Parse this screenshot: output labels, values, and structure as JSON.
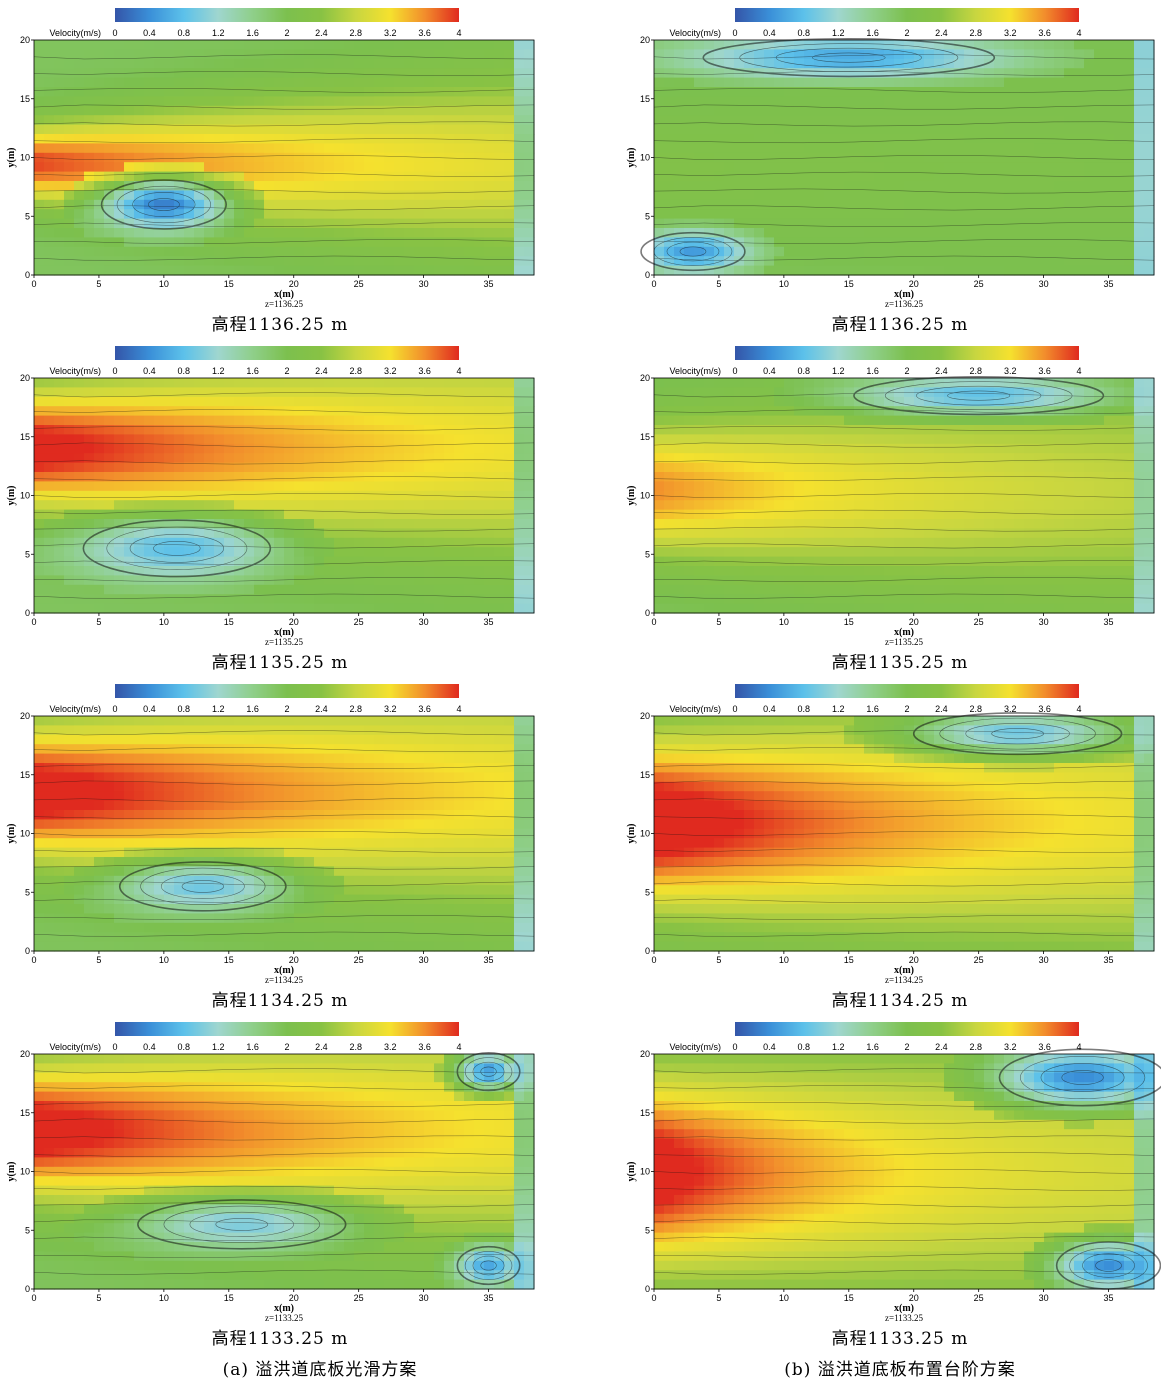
{
  "colorbar": {
    "label": "Velocity(m/s)",
    "ticks": [
      "0",
      "0.4",
      "0.8",
      "1.2",
      "1.6",
      "2",
      "2.4",
      "2.8",
      "3.2",
      "3.6",
      "4"
    ],
    "range": [
      0,
      4
    ],
    "colors": [
      "#3455a8",
      "#3a8fd8",
      "#5cc1ea",
      "#9fd6cf",
      "#8fcf8a",
      "#7cc04e",
      "#88c244",
      "#c8d640",
      "#f5e12e",
      "#f28e2c",
      "#e02a1f"
    ]
  },
  "axes": {
    "xlabel": "x(m)",
    "ylabel": "y(m)",
    "xticks": [
      "0",
      "5",
      "10",
      "15",
      "20",
      "25",
      "30",
      "35"
    ],
    "yticks": [
      "0",
      "5",
      "10",
      "15",
      "20"
    ],
    "xlim": [
      0,
      38.5
    ],
    "ylim": [
      0,
      20
    ]
  },
  "column_captions": {
    "a": "(a) 溢洪道底板光滑方案",
    "b": "(b) 溢洪道底板布置台阶方案"
  },
  "chart_data": [
    {
      "id": "a1",
      "type": "heatmap",
      "column": "a",
      "z_label": "z=1136.25",
      "caption": "高程1136.25 m",
      "jet": {
        "y_center": 9.5,
        "width": 3.2,
        "peak": 3.9,
        "decay_x": 34
      },
      "vortices": [
        {
          "x": 10,
          "y": 6,
          "rx": 6,
          "ry": 2.6,
          "v": 0.3
        }
      ]
    },
    {
      "id": "b1",
      "type": "heatmap",
      "column": "b",
      "z_label": "z=1136.25",
      "caption": "高程1136.25 m",
      "jet": {
        "y_center": 9,
        "width": 6,
        "peak": 2.2,
        "decay_x": 60
      },
      "vortices": [
        {
          "x": 15,
          "y": 18.5,
          "rx": 14,
          "ry": 2,
          "v": 0.6
        },
        {
          "x": 3,
          "y": 2,
          "rx": 5,
          "ry": 2,
          "v": 0.5
        }
      ]
    },
    {
      "id": "a2",
      "type": "heatmap",
      "column": "a",
      "z_label": "z=1135.25",
      "caption": "高程1135.25 m",
      "jet": {
        "y_center": 14,
        "width": 5,
        "peak": 4.2,
        "decay_x": 30
      },
      "vortices": [
        {
          "x": 11,
          "y": 5.5,
          "rx": 9,
          "ry": 3,
          "v": 0.8
        }
      ]
    },
    {
      "id": "b2",
      "type": "heatmap",
      "column": "b",
      "z_label": "z=1135.25",
      "caption": "高程1135.25 m",
      "jet": {
        "y_center": 10.5,
        "width": 5.5,
        "peak": 3.6,
        "decay_x": 26
      },
      "vortices": [
        {
          "x": 25,
          "y": 18.5,
          "rx": 12,
          "ry": 2,
          "v": 0.8
        }
      ]
    },
    {
      "id": "a3",
      "type": "heatmap",
      "column": "a",
      "z_label": "z=1134.25",
      "caption": "高程1134.25 m",
      "jet": {
        "y_center": 13.5,
        "width": 5.5,
        "peak": 4.3,
        "decay_x": 30
      },
      "vortices": [
        {
          "x": 13,
          "y": 5.5,
          "rx": 8,
          "ry": 2.6,
          "v": 0.9
        }
      ]
    },
    {
      "id": "b3",
      "type": "heatmap",
      "column": "b",
      "z_label": "z=1134.25",
      "caption": "高程1134.25 m",
      "jet": {
        "y_center": 11,
        "width": 7,
        "peak": 4.4,
        "decay_x": 24
      },
      "vortices": [
        {
          "x": 28,
          "y": 18.5,
          "rx": 10,
          "ry": 2.2,
          "v": 0.9
        }
      ]
    },
    {
      "id": "a4",
      "type": "heatmap",
      "column": "a",
      "z_label": "z=1133.25",
      "caption": "高程1133.25 m",
      "jet": {
        "y_center": 13.5,
        "width": 5.5,
        "peak": 4.3,
        "decay_x": 28
      },
      "vortices": [
        {
          "x": 16,
          "y": 5.5,
          "rx": 10,
          "ry": 2.6,
          "v": 1.0
        },
        {
          "x": 35,
          "y": 18.5,
          "rx": 3,
          "ry": 2,
          "v": 0.5
        },
        {
          "x": 35,
          "y": 2,
          "rx": 3,
          "ry": 2,
          "v": 0.6
        }
      ]
    },
    {
      "id": "b4",
      "type": "heatmap",
      "column": "b",
      "z_label": "z=1133.25",
      "caption": "高程1133.25 m",
      "jet": {
        "y_center": 10,
        "width": 8,
        "peak": 4.3,
        "decay_x": 16
      },
      "vortices": [
        {
          "x": 33,
          "y": 18,
          "rx": 8,
          "ry": 3,
          "v": 0.4
        },
        {
          "x": 35,
          "y": 2,
          "rx": 5,
          "ry": 2.5,
          "v": 0.4
        }
      ]
    }
  ]
}
